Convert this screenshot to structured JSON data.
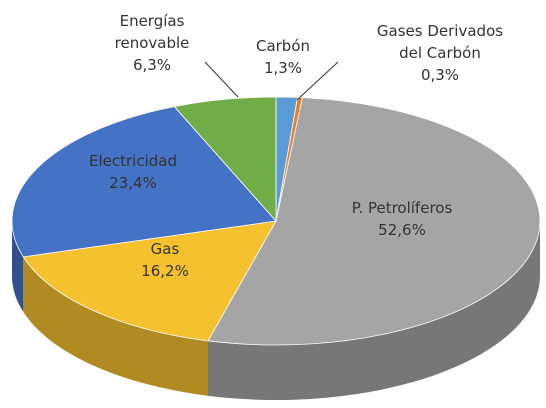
{
  "chart_data": {
    "type": "pie3d",
    "categories": [
      "Carbón",
      "Gases Derivados del Carbón",
      "P. Petrolíferos",
      "Gas",
      "Electricidad",
      "Energías renovable"
    ],
    "values": [
      1.3,
      0.3,
      52.6,
      16.2,
      23.4,
      6.3
    ],
    "value_labels": [
      "1,3%",
      "0,3%",
      "52,6%",
      "16,2%",
      "23,4%",
      "6,3%"
    ],
    "colors": [
      "#5b9bd5",
      "#ed7d31",
      "#a5a5a5",
      "#f6c12e",
      "#4472c4",
      "#70ad47"
    ]
  }
}
